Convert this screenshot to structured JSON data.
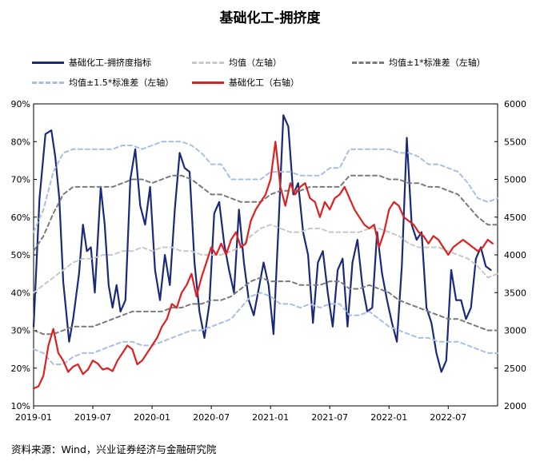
{
  "title": "基础化工-拥挤度",
  "source": "资料来源：Wind，兴业证券经济与金融研究院",
  "legend": [
    {
      "label": "基础化工-拥挤度指标",
      "color": "#1a2a7a",
      "style": "solid"
    },
    {
      "label": "均值（左轴）",
      "color": "#c8c8c8",
      "style": "dash"
    },
    {
      "label": "均值±1*标准差（左轴）",
      "color": "#7a7a7a",
      "style": "dash"
    },
    {
      "label": "均值±1.5*标准差（左轴）",
      "color": "#a8c0e0",
      "style": "dash"
    },
    {
      "label": "基础化工（右轴）",
      "color": "#e02020",
      "style": "solid"
    }
  ],
  "chart_data": {
    "type": "line",
    "x_ticks": [
      "2019-01",
      "2019-07",
      "2020-01",
      "2020-07",
      "2021-01",
      "2021-07",
      "2022-01",
      "2022-07"
    ],
    "x_range": [
      0,
      47
    ],
    "y_left": {
      "min": 10,
      "max": 90,
      "ticks": [
        "10%",
        "20%",
        "30%",
        "40%",
        "50%",
        "60%",
        "70%",
        "80%",
        "90%"
      ],
      "tick_values": [
        10,
        20,
        30,
        40,
        50,
        60,
        70,
        80,
        90
      ]
    },
    "y_right": {
      "min": 2000,
      "max": 6000,
      "ticks": [
        "2000",
        "2500",
        "3000",
        "3500",
        "4000",
        "4500",
        "5000",
        "5500",
        "6000"
      ],
      "tick_values": [
        2000,
        2500,
        3000,
        3500,
        4000,
        4500,
        5000,
        5500,
        6000
      ]
    },
    "series": [
      {
        "name": "基础化工-拥挤度指标",
        "axis": "left",
        "color": "#1a2a7a",
        "dash": "",
        "width": 2.2,
        "x": [
          0,
          0.6,
          1.2,
          1.8,
          2.2,
          2.6,
          3,
          3.6,
          4,
          4.6,
          5,
          5.4,
          5.8,
          6.2,
          6.8,
          7.2,
          7.6,
          8,
          8.4,
          8.8,
          9.3,
          9.8,
          10.3,
          10.8,
          11.3,
          11.8,
          12.3,
          12.8,
          13.3,
          13.8,
          14.3,
          14.8,
          15.3,
          15.8,
          16.3,
          16.8,
          17.3,
          17.8,
          18.3,
          18.8,
          19.3,
          19.8,
          20.3,
          20.8,
          21.3,
          21.8,
          22.3,
          22.8,
          23.3,
          23.8,
          24.3,
          24.8,
          25.3,
          25.8,
          26.3,
          26.8,
          27.3,
          27.8,
          28.3,
          28.8,
          29.3,
          29.8,
          30.3,
          30.8,
          31.3,
          31.8,
          32.3,
          32.8,
          33.3,
          33.8,
          34.3,
          34.8,
          35.3,
          35.8,
          36.3,
          36.8,
          37.3,
          37.8,
          38.3,
          38.8,
          39.3,
          39.8,
          40.3,
          40.8,
          41.3,
          41.8,
          42.3,
          42.8,
          43.3,
          43.8,
          44.3,
          44.8,
          45.3,
          45.8,
          46.3
        ],
        "values": [
          31,
          65,
          82,
          83,
          76,
          65,
          43,
          27,
          33,
          45,
          58,
          51,
          52,
          40,
          68,
          58,
          42,
          36,
          42,
          35,
          38,
          70,
          78,
          63,
          58,
          68,
          46,
          38,
          50,
          42,
          62,
          77,
          73,
          72,
          48,
          35,
          28,
          37,
          61,
          64,
          53,
          46,
          40,
          62,
          48,
          38,
          34,
          41,
          48,
          42,
          29,
          57,
          87,
          84,
          66,
          69,
          56,
          50,
          32,
          48,
          51,
          40,
          31,
          46,
          49,
          31,
          48,
          54,
          42,
          35,
          36,
          56,
          45,
          38,
          32,
          27,
          47,
          81,
          58,
          54,
          56,
          36,
          32,
          24,
          19,
          22,
          46,
          38,
          38,
          33,
          36,
          49,
          52,
          47,
          46
        ]
      },
      {
        "name": "均值（左轴）",
        "axis": "left",
        "color": "#c8c8c8",
        "dash": "5,4",
        "width": 2,
        "x": [
          0,
          1,
          2,
          3,
          4,
          5,
          6,
          7,
          8,
          9,
          10,
          11,
          12,
          13,
          14,
          15,
          16,
          17,
          18,
          19,
          20,
          21,
          22,
          23,
          24,
          25,
          26,
          27,
          28,
          29,
          30,
          31,
          32,
          33,
          34,
          35,
          36,
          37,
          38,
          39,
          40,
          41,
          42,
          43,
          44,
          45,
          46,
          47
        ],
        "values": [
          40,
          42,
          44,
          46,
          48,
          49,
          49,
          50,
          50,
          51,
          51,
          52,
          51,
          52,
          52,
          51,
          51,
          50,
          50,
          50,
          51,
          52,
          55,
          57,
          58,
          57,
          56,
          56,
          57,
          57,
          56,
          56,
          56,
          56,
          57,
          57,
          56,
          55,
          53,
          52,
          52,
          52,
          51,
          50,
          49,
          47,
          44,
          45
        ]
      },
      {
        "name": "均值±1*标准差（左轴）上",
        "axis": "left",
        "color": "#7a7a7a",
        "dash": "5,4",
        "width": 2,
        "x": [
          0,
          1,
          2,
          3,
          4,
          5,
          6,
          7,
          8,
          9,
          10,
          11,
          12,
          13,
          14,
          15,
          16,
          17,
          18,
          19,
          20,
          21,
          22,
          23,
          24,
          25,
          26,
          27,
          28,
          29,
          30,
          31,
          32,
          33,
          34,
          35,
          36,
          37,
          38,
          39,
          40,
          41,
          42,
          43,
          44,
          45,
          46,
          47
        ],
        "values": [
          51,
          55,
          61,
          66,
          68,
          68,
          68,
          68,
          68,
          69,
          70,
          70,
          69,
          70,
          71,
          71,
          70,
          68,
          66,
          66,
          65,
          64,
          64,
          64,
          66,
          67,
          67,
          67,
          68,
          68,
          68,
          68,
          71,
          71,
          71,
          71,
          70,
          70,
          69,
          69,
          68,
          68,
          67,
          66,
          63,
          60,
          58,
          58
        ]
      },
      {
        "name": "均值±1*标准差（左轴）下",
        "axis": "left",
        "color": "#7a7a7a",
        "dash": "5,4",
        "width": 2,
        "x": [
          0,
          1,
          2,
          3,
          4,
          5,
          6,
          7,
          8,
          9,
          10,
          11,
          12,
          13,
          14,
          15,
          16,
          17,
          18,
          19,
          20,
          21,
          22,
          23,
          24,
          25,
          26,
          27,
          28,
          29,
          30,
          31,
          32,
          33,
          34,
          35,
          36,
          37,
          38,
          39,
          40,
          41,
          42,
          43,
          44,
          45,
          46,
          47
        ],
        "values": [
          30,
          29,
          29,
          30,
          31,
          31,
          31,
          32,
          33,
          34,
          35,
          35,
          35,
          35,
          36,
          36,
          37,
          37,
          38,
          38,
          39,
          41,
          43,
          44,
          43,
          43,
          43,
          42,
          42,
          42,
          43,
          43,
          41,
          41,
          42,
          41,
          40,
          38,
          37,
          36,
          35,
          34,
          33,
          33,
          32,
          31,
          30,
          30
        ]
      },
      {
        "name": "均值±1.5*标准差（左轴）上",
        "axis": "left",
        "color": "#a8c0e0",
        "dash": "5,4",
        "width": 2,
        "x": [
          0,
          1,
          2,
          3,
          4,
          5,
          6,
          7,
          8,
          9,
          10,
          11,
          12,
          13,
          14,
          15,
          16,
          17,
          18,
          19,
          20,
          21,
          22,
          23,
          24,
          25,
          26,
          27,
          28,
          29,
          30,
          31,
          32,
          33,
          34,
          35,
          36,
          37,
          38,
          39,
          40,
          41,
          42,
          43,
          44,
          45,
          46,
          47
        ],
        "values": [
          56,
          62,
          72,
          77,
          78,
          78,
          78,
          78,
          78,
          79,
          79,
          78,
          79,
          80,
          80,
          80,
          79,
          77,
          74,
          74,
          70,
          70,
          70,
          70,
          72,
          72,
          72,
          71,
          71,
          71,
          73,
          73,
          78,
          78,
          78,
          78,
          78,
          77,
          77,
          76,
          74,
          74,
          73,
          72,
          69,
          65,
          64,
          65
        ]
      },
      {
        "name": "均值±1.5*标准差（左轴）下",
        "axis": "left",
        "color": "#a8c0e0",
        "dash": "5,4",
        "width": 2,
        "x": [
          0,
          1,
          2,
          3,
          4,
          5,
          6,
          7,
          8,
          9,
          10,
          11,
          12,
          13,
          14,
          15,
          16,
          17,
          18,
          19,
          20,
          21,
          22,
          23,
          24,
          25,
          26,
          27,
          28,
          29,
          30,
          31,
          32,
          33,
          34,
          35,
          36,
          37,
          38,
          39,
          40,
          41,
          42,
          43,
          44,
          45,
          46,
          47
        ],
        "values": [
          25,
          24,
          21,
          21,
          23,
          24,
          24,
          25,
          26,
          27,
          27,
          26,
          26,
          27,
          28,
          29,
          30,
          30,
          31,
          32,
          33,
          36,
          39,
          40,
          39,
          37,
          37,
          36,
          37,
          36,
          37,
          37,
          34,
          34,
          35,
          33,
          31,
          30,
          29,
          28,
          28,
          27,
          27,
          27,
          26,
          25,
          24,
          24
        ]
      },
      {
        "name": "基础化工（右轴）",
        "axis": "right",
        "color": "#e02020",
        "dash": "",
        "width": 2.2,
        "x": [
          0,
          0.5,
          1,
          1.5,
          2,
          2.5,
          3,
          3.5,
          4,
          4.5,
          5,
          5.5,
          6,
          6.5,
          7,
          7.5,
          8,
          8.5,
          9,
          9.5,
          10,
          10.5,
          11,
          11.5,
          12,
          12.5,
          13,
          13.5,
          14,
          14.5,
          15,
          15.5,
          16,
          16.5,
          17,
          17.5,
          18,
          18.5,
          19,
          19.5,
          20,
          20.5,
          21,
          21.5,
          22,
          22.5,
          23,
          23.5,
          24,
          24.5,
          25,
          25.5,
          26,
          26.5,
          27,
          27.5,
          28,
          28.5,
          29,
          29.5,
          30,
          30.5,
          31,
          31.5,
          32,
          32.5,
          33,
          33.5,
          34,
          34.5,
          35,
          35.5,
          36,
          36.5,
          37,
          37.5,
          38,
          38.5,
          39,
          39.5,
          40,
          40.5,
          41,
          41.5,
          42,
          42.5,
          43,
          43.5,
          44,
          44.5,
          45,
          45.5,
          46,
          46.5
        ],
        "values": [
          2230,
          2260,
          2400,
          2800,
          3020,
          2700,
          2600,
          2450,
          2520,
          2550,
          2420,
          2480,
          2600,
          2560,
          2480,
          2500,
          2460,
          2600,
          2700,
          2800,
          2750,
          2550,
          2600,
          2700,
          2800,
          2900,
          3050,
          3150,
          3350,
          3300,
          3500,
          3600,
          3750,
          3450,
          3700,
          3900,
          4100,
          4000,
          4150,
          4000,
          4200,
          4300,
          4100,
          4150,
          4450,
          4600,
          4700,
          4800,
          5000,
          5500,
          4900,
          4650,
          4950,
          4800,
          4900,
          4950,
          4750,
          4700,
          4500,
          4700,
          4600,
          4750,
          4800,
          4900,
          4750,
          4600,
          4500,
          4400,
          4350,
          4400,
          4100,
          4300,
          4600,
          4700,
          4650,
          4500,
          4450,
          4400,
          4300,
          4250,
          4150,
          4250,
          4200,
          4100,
          4000,
          4100,
          4150,
          4200,
          4150,
          4100,
          4050,
          4100,
          4200,
          4150
        ]
      }
    ]
  }
}
